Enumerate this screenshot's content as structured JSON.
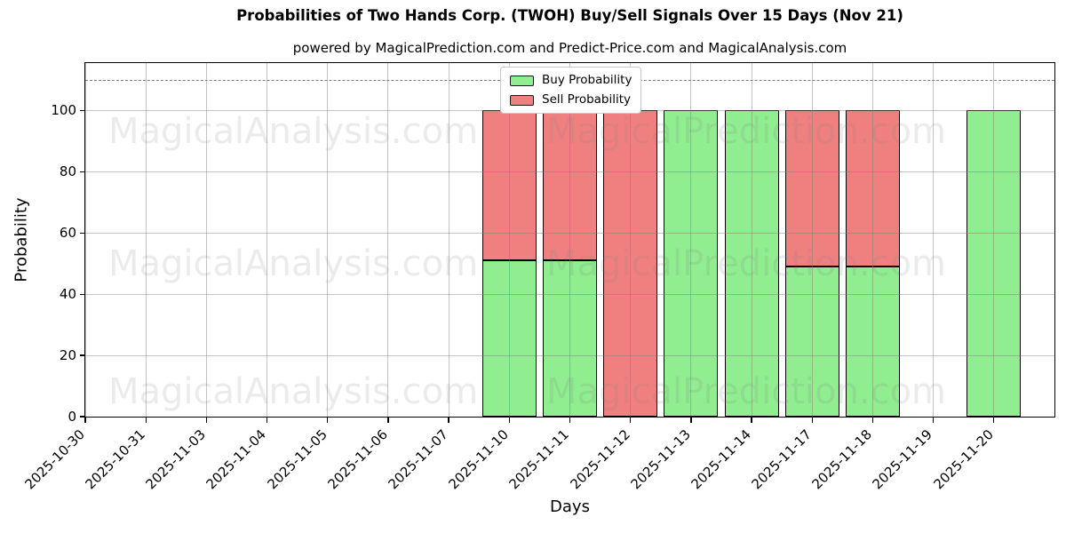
{
  "chart_data": {
    "type": "bar",
    "stacked": true,
    "title": "Probabilities of Two Hands Corp. (TWOH) Buy/Sell Signals Over 15 Days (Nov 21)",
    "subtitle": "powered by MagicalPrediction.com and Predict-Price.com and MagicalAnalysis.com",
    "xlabel": "Days",
    "ylabel": "Probability",
    "categories": [
      "2025-10-30",
      "2025-10-31",
      "2025-11-03",
      "2025-11-04",
      "2025-11-05",
      "2025-11-06",
      "2025-11-07",
      "2025-11-10",
      "2025-11-11",
      "2025-11-12",
      "2025-11-13",
      "2025-11-14",
      "2025-11-17",
      "2025-11-18",
      "2025-11-19",
      "2025-11-20"
    ],
    "series": [
      {
        "name": "Buy Probability",
        "color": "#90ee90",
        "values": [
          0,
          0,
          0,
          0,
          0,
          0,
          0,
          51,
          51,
          0,
          100,
          100,
          49,
          49,
          0,
          100
        ]
      },
      {
        "name": "Sell Probability",
        "color": "#f08080",
        "values": [
          0,
          0,
          0,
          0,
          0,
          0,
          0,
          49,
          49,
          100,
          0,
          0,
          51,
          51,
          0,
          0
        ]
      }
    ],
    "ylim": [
      0,
      115.5
    ],
    "yticks": [
      0,
      20,
      40,
      60,
      80,
      100
    ],
    "dashed_guideline_y": 110,
    "grid": true,
    "bar_edge_color": "#000000",
    "legend_position": "top-center"
  },
  "legend": {
    "items": [
      {
        "label": "Buy Probability",
        "color": "#90ee90"
      },
      {
        "label": "Sell Probability",
        "color": "#f08080"
      }
    ]
  },
  "watermarks": {
    "left": "MagicalAnalysis.com",
    "right": "MagicalPrediction.com"
  }
}
